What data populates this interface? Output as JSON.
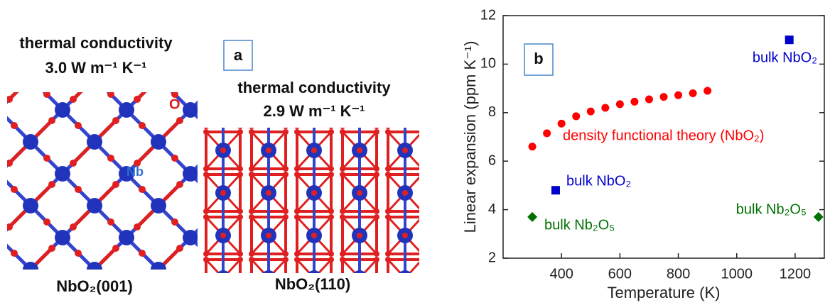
{
  "panel_a": {
    "label": "a",
    "left": {
      "heading": "thermal conductivity",
      "value": "3.0 W m⁻¹ K⁻¹",
      "o_label": "O",
      "nb_label": "Nb",
      "caption": "NbO₂(001)"
    },
    "right": {
      "heading": "thermal conductivity",
      "value": "2.9 W m⁻¹ K⁻¹",
      "caption": "NbO₂(110)"
    }
  },
  "chart_data": {
    "type": "scatter",
    "panel_label": "b",
    "xlabel": "Temperature (K)",
    "ylabel": "Linear expansion (ppm K⁻¹)",
    "xlim": [
      200,
      1300
    ],
    "xticks": [
      400,
      600,
      800,
      1000,
      1200
    ],
    "ylim": [
      2,
      12
    ],
    "yticks": [
      2,
      4,
      6,
      8,
      10,
      12
    ],
    "series": [
      {
        "name": "density functional theory (NbO₂)",
        "color": "#ff0000",
        "marker": "circle",
        "x": [
          300,
          350,
          400,
          450,
          500,
          550,
          600,
          650,
          700,
          750,
          800,
          850,
          900
        ],
        "values": [
          6.6,
          7.15,
          7.55,
          7.85,
          8.05,
          8.2,
          8.35,
          8.45,
          8.55,
          8.65,
          8.72,
          8.8,
          8.9
        ]
      },
      {
        "name": "bulk NbO₂",
        "color": "#0000cc",
        "marker": "square",
        "x": [
          380,
          1180
        ],
        "values": [
          4.8,
          11
        ]
      },
      {
        "name": "bulk Nb₂O₅",
        "color": "#007000",
        "marker": "diamond",
        "x": [
          300,
          1280
        ],
        "values": [
          3.7,
          3.7
        ]
      }
    ]
  }
}
